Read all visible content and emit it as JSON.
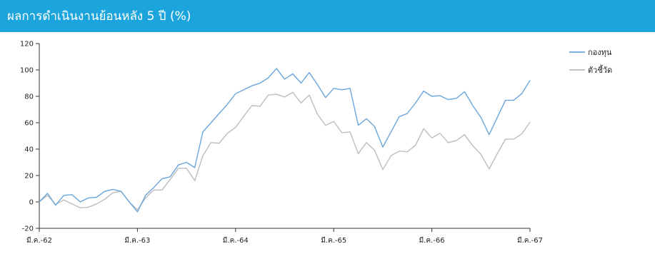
{
  "header": {
    "title": "ผลการดำเนินงานย้อนหลัง 5 ปี (%)"
  },
  "colors": {
    "header_bg": "#1ca4dc",
    "fund": "#6aa6dc",
    "benchmark": "#bdbdbd"
  },
  "chart_data": {
    "type": "line",
    "title": "ผลการดำเนินงานย้อนหลัง 5 ปี (%)",
    "xlabel": "",
    "ylabel": "",
    "ylim": [
      -20,
      120
    ],
    "yticks": [
      -20,
      0,
      20,
      40,
      60,
      80,
      100,
      120
    ],
    "x_tick_labels": [
      "มี.ค.-62",
      "มี.ค.-63",
      "มี.ค.-64",
      "มี.ค.-65",
      "มี.ค.-66",
      "มี.ค.-67"
    ],
    "grid": false,
    "legend_position": "top-right",
    "series": [
      {
        "name": "กองทุน",
        "values": [
          0,
          6.5,
          -2.5,
          5,
          5.5,
          0,
          3,
          3.5,
          8,
          9.5,
          8,
          0,
          -7.5,
          5,
          11,
          17.5,
          19,
          28,
          30,
          26,
          53,
          60,
          67,
          74,
          82,
          85,
          88,
          90,
          94,
          101,
          93,
          97,
          90,
          98,
          89,
          79,
          86,
          85,
          86,
          58,
          63,
          57,
          41.5,
          53,
          64.5,
          67,
          75,
          84,
          80,
          80.5,
          77.5,
          78.5,
          83.5,
          73,
          64,
          51,
          64,
          77,
          77,
          82,
          92
        ]
      },
      {
        "name": "ตัวชี้วัด",
        "values": [
          0,
          5,
          -2,
          1.5,
          -1.5,
          -4.5,
          -4,
          -1.5,
          2,
          7,
          8,
          0,
          -6,
          3,
          9,
          9,
          17,
          25.5,
          25.5,
          16,
          35,
          45,
          44.5,
          52,
          56.5,
          65,
          73,
          72.5,
          81,
          81.5,
          79.5,
          83,
          75,
          81,
          66.5,
          58,
          61,
          52.5,
          53,
          36.5,
          45,
          39,
          24.5,
          35,
          38.5,
          38,
          43,
          55.5,
          48.5,
          52,
          45,
          46.5,
          51,
          42.5,
          36,
          25,
          36.5,
          47.5,
          47.5,
          51.5,
          60.5
        ]
      }
    ]
  }
}
